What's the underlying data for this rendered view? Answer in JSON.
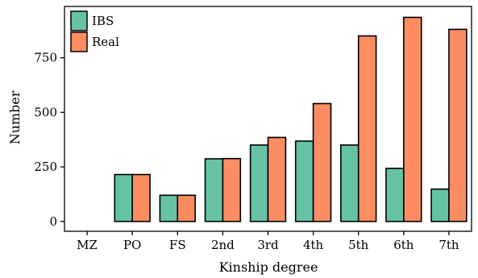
{
  "chart_data": {
    "type": "bar",
    "xlabel": "Kinship degree",
    "ylabel": "Number",
    "categories": [
      "MZ",
      "PO",
      "FS",
      "2nd",
      "3rd",
      "4th",
      "5th",
      "6th",
      "7th"
    ],
    "series": [
      {
        "name": "IBS",
        "color": "#66c2a5",
        "values": [
          0,
          215,
          120,
          287,
          350,
          368,
          350,
          243,
          148
        ]
      },
      {
        "name": "Real",
        "color": "#fc8d62",
        "values": [
          0,
          215,
          120,
          288,
          385,
          540,
          850,
          935,
          880
        ]
      }
    ],
    "yticks": [
      0,
      250,
      500,
      750
    ],
    "ylim": [
      -45,
      985
    ],
    "legend_position": "top-left",
    "grid": false
  }
}
